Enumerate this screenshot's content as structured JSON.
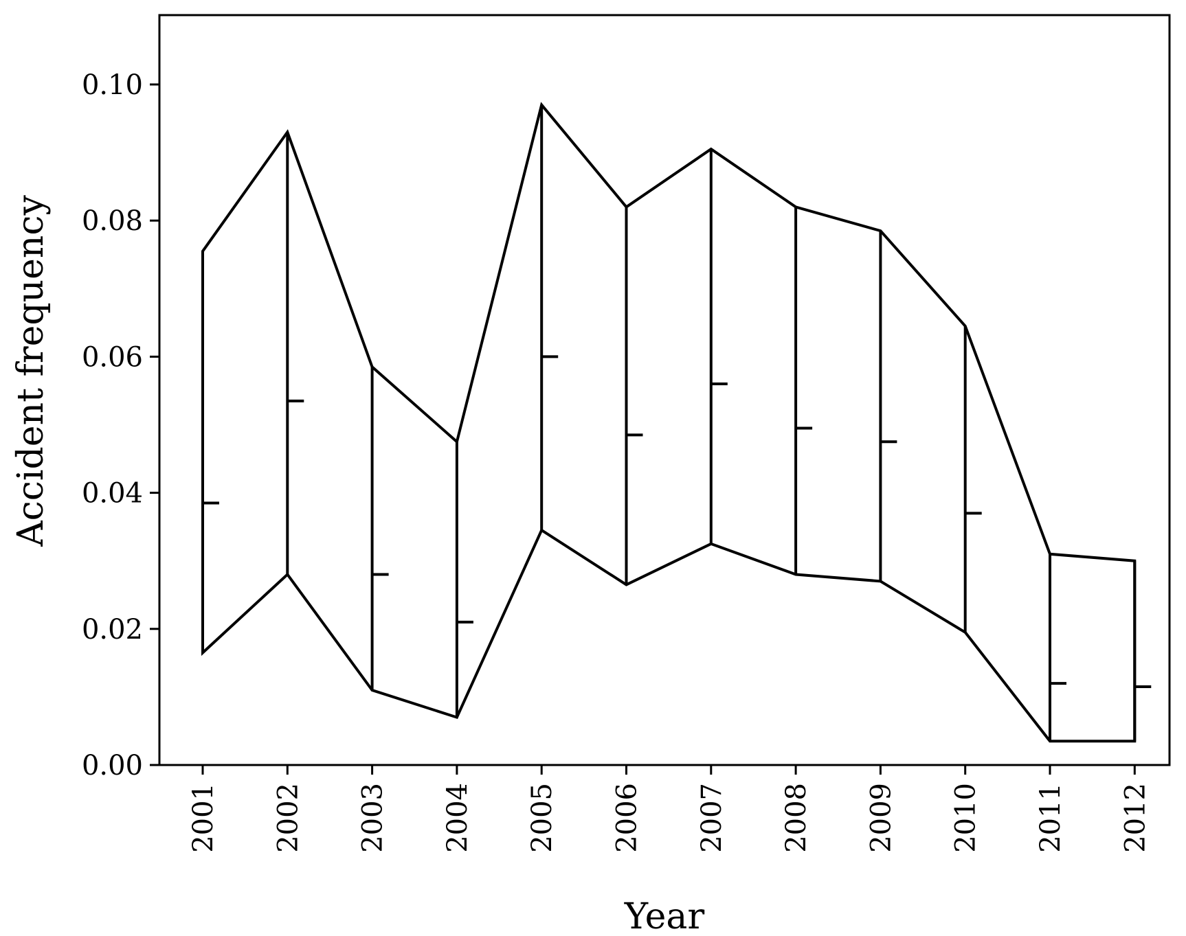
{
  "chart_data": {
    "type": "line",
    "title": "",
    "xlabel": "Year",
    "ylabel": "Accident frequency",
    "ylim": [
      0,
      0.11
    ],
    "y_ticks": [
      "0.00",
      "0.02",
      "0.04",
      "0.06",
      "0.08",
      "0.10"
    ],
    "y_tick_values": [
      0,
      0.02,
      0.04,
      0.06,
      0.08,
      0.1
    ],
    "categories": [
      "2001",
      "2002",
      "2003",
      "2004",
      "2005",
      "2006",
      "2007",
      "2008",
      "2009",
      "2010",
      "2011",
      "2012"
    ],
    "series": [
      {
        "values": [
          0.0755,
          0.093,
          0.0585,
          0.0475,
          0.097,
          0.082,
          0.0905,
          0.082,
          0.0785,
          0.0645,
          0.031,
          0.03
        ]
      },
      {
        "values": [
          0.0385,
          0.0535,
          0.028,
          0.021,
          0.06,
          0.0485,
          0.056,
          0.0495,
          0.0475,
          0.037,
          0.012,
          0.0115
        ]
      },
      {
        "values": [
          0.0165,
          0.028,
          0.011,
          0.007,
          0.0345,
          0.0265,
          0.0325,
          0.028,
          0.027,
          0.0195,
          0.0035,
          0.0035
        ]
      }
    ],
    "grid": false,
    "legend": "none"
  }
}
